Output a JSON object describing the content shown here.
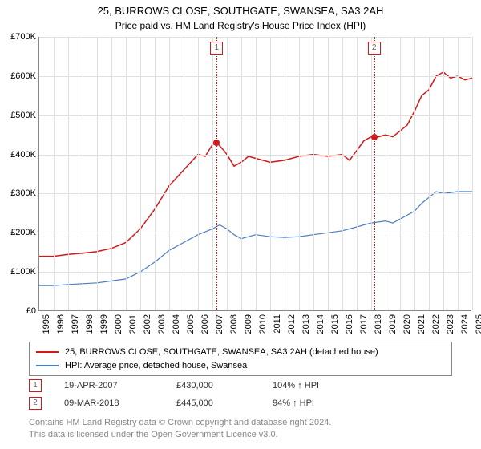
{
  "title_line1": "25, BURROWS CLOSE, SOUTHGATE, SWANSEA, SA3 2AH",
  "title_line2": "Price paid vs. HM Land Registry's House Price Index (HPI)",
  "chart": {
    "type": "line",
    "background_color": "#ffffff",
    "grid_color": "#e0e0e0",
    "axis_color": "#888888",
    "y": {
      "min": 0,
      "max": 700000,
      "tick_step": 100000,
      "tick_labels": [
        "£0",
        "£100K",
        "£200K",
        "£300K",
        "£400K",
        "£500K",
        "£600K",
        "£700K"
      ],
      "label_fontsize": 11
    },
    "x": {
      "min": 1995,
      "max": 2025,
      "tick_labels": [
        "1995",
        "1996",
        "1997",
        "1998",
        "1999",
        "2000",
        "2001",
        "2002",
        "2003",
        "2004",
        "2005",
        "2006",
        "2007",
        "2008",
        "2009",
        "2010",
        "2011",
        "2012",
        "2013",
        "2014",
        "2015",
        "2016",
        "2017",
        "2018",
        "2019",
        "2020",
        "2021",
        "2022",
        "2023",
        "2024",
        "2025"
      ],
      "label_fontsize": 11
    },
    "series": [
      {
        "name": "price_paid",
        "color": "#d21919",
        "line_width": 1.5,
        "points": [
          [
            1995,
            140000
          ],
          [
            1996,
            140000
          ],
          [
            1997,
            145000
          ],
          [
            1998,
            148000
          ],
          [
            1999,
            152000
          ],
          [
            2000,
            160000
          ],
          [
            2001,
            175000
          ],
          [
            2002,
            210000
          ],
          [
            2003,
            260000
          ],
          [
            2004,
            320000
          ],
          [
            2005,
            360000
          ],
          [
            2006,
            400000
          ],
          [
            2006.5,
            395000
          ],
          [
            2007,
            425000
          ],
          [
            2007.3,
            430000
          ],
          [
            2007.8,
            410000
          ],
          [
            2008,
            400000
          ],
          [
            2008.5,
            370000
          ],
          [
            2009,
            380000
          ],
          [
            2009.5,
            395000
          ],
          [
            2010,
            390000
          ],
          [
            2011,
            380000
          ],
          [
            2012,
            385000
          ],
          [
            2013,
            395000
          ],
          [
            2014,
            400000
          ],
          [
            2015,
            395000
          ],
          [
            2016,
            400000
          ],
          [
            2016.5,
            385000
          ],
          [
            2017,
            410000
          ],
          [
            2017.5,
            435000
          ],
          [
            2018,
            445000
          ],
          [
            2018.5,
            445000
          ],
          [
            2019,
            450000
          ],
          [
            2019.5,
            445000
          ],
          [
            2020,
            460000
          ],
          [
            2020.5,
            475000
          ],
          [
            2021,
            510000
          ],
          [
            2021.5,
            550000
          ],
          [
            2022,
            565000
          ],
          [
            2022.5,
            600000
          ],
          [
            2023,
            610000
          ],
          [
            2023.5,
            595000
          ],
          [
            2024,
            600000
          ],
          [
            2024.5,
            590000
          ],
          [
            2025,
            595000
          ]
        ]
      },
      {
        "name": "hpi",
        "color": "#4a7cc4",
        "line_width": 1.2,
        "points": [
          [
            1995,
            65000
          ],
          [
            1996,
            65000
          ],
          [
            1997,
            68000
          ],
          [
            1998,
            70000
          ],
          [
            1999,
            72000
          ],
          [
            2000,
            77000
          ],
          [
            2001,
            82000
          ],
          [
            2002,
            100000
          ],
          [
            2003,
            125000
          ],
          [
            2004,
            155000
          ],
          [
            2005,
            175000
          ],
          [
            2006,
            195000
          ],
          [
            2007,
            210000
          ],
          [
            2007.5,
            220000
          ],
          [
            2008,
            210000
          ],
          [
            2008.5,
            195000
          ],
          [
            2009,
            185000
          ],
          [
            2010,
            195000
          ],
          [
            2011,
            190000
          ],
          [
            2012,
            188000
          ],
          [
            2013,
            190000
          ],
          [
            2014,
            195000
          ],
          [
            2015,
            200000
          ],
          [
            2016,
            205000
          ],
          [
            2017,
            215000
          ],
          [
            2018,
            225000
          ],
          [
            2019,
            230000
          ],
          [
            2019.5,
            225000
          ],
          [
            2020,
            235000
          ],
          [
            2021,
            255000
          ],
          [
            2021.5,
            275000
          ],
          [
            2022,
            290000
          ],
          [
            2022.5,
            305000
          ],
          [
            2023,
            300000
          ],
          [
            2024,
            305000
          ],
          [
            2025,
            305000
          ]
        ]
      }
    ],
    "markers": [
      {
        "n": "1",
        "x_year": 2007.3,
        "y_value": 430000
      },
      {
        "n": "2",
        "x_year": 2018.2,
        "y_value": 445000
      }
    ]
  },
  "legend": {
    "border_color": "#888888",
    "items": [
      {
        "color": "#d21919",
        "label": "25, BURROWS CLOSE, SOUTHGATE, SWANSEA, SA3 2AH (detached house)"
      },
      {
        "color": "#4a7cc4",
        "label": "HPI: Average price, detached house, Swansea"
      }
    ]
  },
  "sales": [
    {
      "n": "1",
      "date": "19-APR-2007",
      "price": "£430,000",
      "hpi": "104% ↑ HPI"
    },
    {
      "n": "2",
      "date": "09-MAR-2018",
      "price": "£445,000",
      "hpi": "94% ↑ HPI"
    }
  ],
  "footer_line1": "Contains HM Land Registry data © Crown copyright and database right 2024.",
  "footer_line2": "This data is licensed under the Open Government Licence v3.0."
}
